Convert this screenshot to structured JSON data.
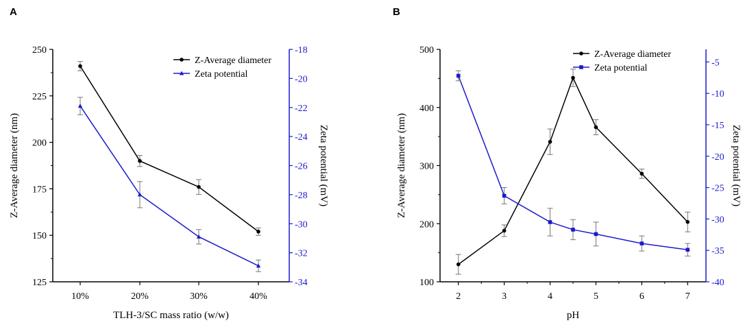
{
  "colors": {
    "left_series": "#000000",
    "right_series": "#1a1acc"
  },
  "chart_data": [
    {
      "panel_label": "A",
      "type": "line",
      "xlabel": "TLH-3/SC mass ratio (w/w)",
      "ylabel": "Z-Average diameter (nm)",
      "y2label": "Zeta potential (mV)",
      "categories": [
        "10%",
        "20%",
        "30%",
        "40%"
      ],
      "ylim": [
        125,
        250
      ],
      "yticks": [
        125,
        150,
        175,
        200,
        225,
        250
      ],
      "y2lim": [
        -34,
        -18
      ],
      "y2ticks": [
        -34,
        -32,
        -30,
        -28,
        -26,
        -24,
        -22,
        -20,
        -18
      ],
      "legend_position": "top-right",
      "series": [
        {
          "name": "Z-Average diameter",
          "axis": "left",
          "marker": "circle",
          "values": [
            241,
            190,
            176,
            152
          ],
          "errors": [
            2.5,
            3,
            4,
            2
          ]
        },
        {
          "name": "Zeta potential",
          "axis": "right",
          "marker": "triangle",
          "values": [
            -21.9,
            -28.0,
            -30.9,
            -32.9
          ],
          "errors": [
            0.6,
            0.9,
            0.5,
            0.4
          ]
        }
      ]
    },
    {
      "panel_label": "B",
      "type": "line",
      "xlabel": "pH",
      "ylabel": "Z-Average diameter (nm)",
      "y2label": "Zeta potential (mV)",
      "x": [
        2,
        3,
        4,
        4.5,
        5,
        6,
        7
      ],
      "xlim": [
        1.6,
        7.4
      ],
      "xticks": [
        2,
        3,
        4,
        5,
        6,
        7
      ],
      "ylim": [
        100,
        500
      ],
      "yticks": [
        100,
        200,
        300,
        400,
        500
      ],
      "y2lim": [
        -40,
        -3
      ],
      "y2ticks": [
        -40,
        -35,
        -30,
        -25,
        -20,
        -15,
        -10,
        -5
      ],
      "legend_position": "top-right",
      "series": [
        {
          "name": "Z-Average diameter",
          "axis": "left",
          "marker": "circle",
          "values": [
            130,
            188,
            341,
            451,
            366,
            286,
            203
          ],
          "errors": [
            17,
            10,
            22,
            15,
            13,
            8,
            17
          ]
        },
        {
          "name": "Zeta potential",
          "axis": "right",
          "marker": "square",
          "values": [
            -7.2,
            -26.3,
            -30.5,
            -31.7,
            -32.4,
            -33.9,
            -34.9
          ],
          "errors": [
            0.8,
            1.3,
            2.2,
            1.6,
            1.9,
            1.2,
            1.0
          ]
        }
      ]
    }
  ]
}
